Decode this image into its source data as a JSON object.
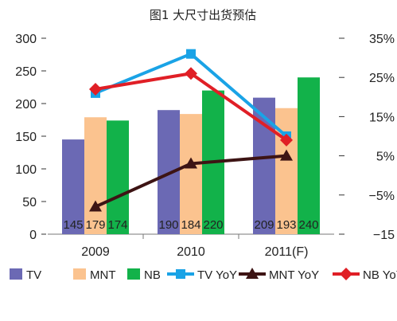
{
  "chart_data": {
    "type": "bar",
    "title": "图1  大尺寸出货预估",
    "categories": [
      "2009",
      "2010",
      "2011(F)"
    ],
    "series": [
      {
        "name": "TV",
        "kind": "bar",
        "axis": "left",
        "color": "#6b69b4",
        "values": [
          145,
          190,
          209
        ]
      },
      {
        "name": "MNT",
        "kind": "bar",
        "axis": "left",
        "color": "#fbc38f",
        "values": [
          179,
          184,
          193
        ]
      },
      {
        "name": "NB",
        "kind": "bar",
        "axis": "left",
        "color": "#12b24a",
        "values": [
          174,
          220,
          240
        ]
      },
      {
        "name": "TV YoY",
        "kind": "line",
        "axis": "right",
        "color": "#1aa3e6",
        "marker": "square",
        "values": [
          21,
          31,
          10
        ]
      },
      {
        "name": "MNT YoY",
        "kind": "line",
        "axis": "right",
        "color": "#3d1414",
        "marker": "triangle",
        "values": [
          -8,
          3,
          5
        ]
      },
      {
        "name": "NB YoY",
        "kind": "line",
        "axis": "right",
        "color": "#e01f26",
        "marker": "diamond",
        "values": [
          22,
          26,
          9
        ]
      }
    ],
    "ylim": [
      0,
      300
    ],
    "yticks": [
      "300",
      "250",
      "200",
      "150",
      "100",
      "50",
      "0"
    ],
    "y2lim": [
      -15,
      35
    ],
    "y2ticks": [
      "35%",
      "25%",
      "15%",
      "5%",
      "−5%",
      "−15"
    ],
    "data_labels": [
      [
        "145",
        "179",
        "174"
      ],
      [
        "190",
        "184",
        "220"
      ],
      [
        "209",
        "193",
        "240"
      ]
    ],
    "grid": false,
    "legend": "bottom"
  }
}
